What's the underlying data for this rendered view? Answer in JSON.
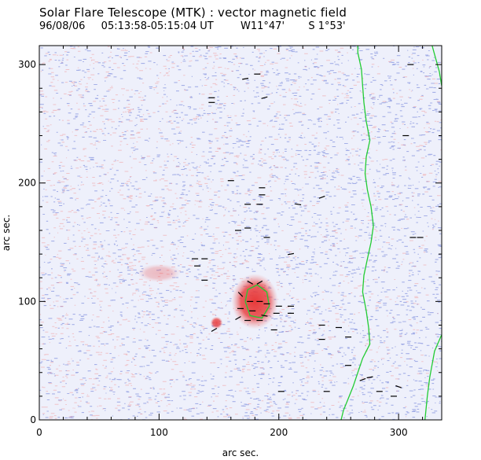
{
  "header": {
    "title": "Solar Flare Telescope (MTK) : vector magnetic field",
    "date": "96/08/06",
    "time_range": "05:13:58-05:15:04 UT",
    "position_w": "W11°47'",
    "position_s": "S 1°53'"
  },
  "chart_data": {
    "type": "scatter",
    "title": "Solar Flare Telescope (MTK) : vector magnetic field",
    "xlabel": "arc sec.",
    "ylabel": "arc sec.",
    "xlim": [
      0,
      336
    ],
    "ylim": [
      0,
      316
    ],
    "xticks": [
      0,
      100,
      200,
      300
    ],
    "yticks": [
      0,
      100,
      200,
      300
    ],
    "background_colors": {
      "negative_polarity": "#8c9ae0",
      "positive_polarity": "#f08a8a",
      "strong_positive": "#e83a3a",
      "neutral_line": "#22cc33",
      "transverse_field": "#000000"
    },
    "strong_regions": [
      {
        "name": "sunspot-main",
        "x": 180,
        "y": 100,
        "rx": 15,
        "ry": 18,
        "intensity": 1.0
      },
      {
        "name": "sunspot-small",
        "x": 148,
        "y": 82,
        "rx": 4,
        "ry": 4,
        "intensity": 0.9
      },
      {
        "name": "plage-weak",
        "x": 100,
        "y": 124,
        "rx": 14,
        "ry": 6,
        "intensity": 0.3
      }
    ],
    "neutral_lines": [
      {
        "name": "neutral-line-left",
        "points": [
          [
            252,
            0
          ],
          [
            254,
            8
          ],
          [
            258,
            18
          ],
          [
            262,
            28
          ],
          [
            266,
            40
          ],
          [
            270,
            52
          ],
          [
            276,
            64
          ],
          [
            275,
            78
          ],
          [
            273,
            92
          ],
          [
            270,
            108
          ],
          [
            271,
            122
          ],
          [
            274,
            136
          ],
          [
            277,
            150
          ],
          [
            279,
            164
          ],
          [
            277,
            180
          ],
          [
            274,
            194
          ],
          [
            272,
            208
          ],
          [
            273,
            222
          ],
          [
            276,
            236
          ],
          [
            273,
            252
          ],
          [
            271,
            268
          ],
          [
            270,
            282
          ],
          [
            269,
            296
          ],
          [
            266,
            310
          ],
          [
            266,
            316
          ]
        ]
      },
      {
        "name": "neutral-line-right",
        "points": [
          [
            322,
            0
          ],
          [
            324,
            20
          ],
          [
            326,
            36
          ],
          [
            330,
            58
          ],
          [
            336,
            72
          ]
        ]
      },
      {
        "name": "neutral-line-right-top",
        "points": [
          [
            328,
            316
          ],
          [
            331,
            305
          ],
          [
            334,
            294
          ],
          [
            336,
            282
          ]
        ]
      },
      {
        "name": "neutral-loop-sunspot",
        "points": [
          [
            172,
            100
          ],
          [
            174,
            110
          ],
          [
            182,
            114
          ],
          [
            190,
            108
          ],
          [
            192,
            96
          ],
          [
            186,
            86
          ],
          [
            176,
            88
          ],
          [
            172,
            100
          ]
        ]
      }
    ],
    "transverse_vectors": [
      {
        "x": 172,
        "y": 288,
        "angle": 10
      },
      {
        "x": 182,
        "y": 292,
        "angle": 0
      },
      {
        "x": 144,
        "y": 272,
        "angle": 0
      },
      {
        "x": 144,
        "y": 268,
        "angle": 0
      },
      {
        "x": 188,
        "y": 272,
        "angle": 15
      },
      {
        "x": 160,
        "y": 202,
        "angle": 0
      },
      {
        "x": 186,
        "y": 196,
        "angle": 0
      },
      {
        "x": 186,
        "y": 190,
        "angle": 0
      },
      {
        "x": 174,
        "y": 182,
        "angle": 0
      },
      {
        "x": 184,
        "y": 182,
        "angle": 0
      },
      {
        "x": 216,
        "y": 182,
        "angle": -10
      },
      {
        "x": 236,
        "y": 188,
        "angle": 20
      },
      {
        "x": 166,
        "y": 160,
        "angle": 0
      },
      {
        "x": 174,
        "y": 162,
        "angle": 0
      },
      {
        "x": 190,
        "y": 154,
        "angle": 0
      },
      {
        "x": 210,
        "y": 140,
        "angle": 10
      },
      {
        "x": 130,
        "y": 136,
        "angle": 0
      },
      {
        "x": 138,
        "y": 136,
        "angle": 0
      },
      {
        "x": 132,
        "y": 130,
        "angle": 0
      },
      {
        "x": 138,
        "y": 118,
        "angle": 0
      },
      {
        "x": 176,
        "y": 116,
        "angle": -30
      },
      {
        "x": 184,
        "y": 116,
        "angle": 30
      },
      {
        "x": 168,
        "y": 106,
        "angle": -45
      },
      {
        "x": 176,
        "y": 100,
        "angle": 0
      },
      {
        "x": 184,
        "y": 100,
        "angle": 0
      },
      {
        "x": 190,
        "y": 98,
        "angle": 0
      },
      {
        "x": 200,
        "y": 96,
        "angle": 0
      },
      {
        "x": 210,
        "y": 96,
        "angle": 0
      },
      {
        "x": 168,
        "y": 94,
        "angle": 0
      },
      {
        "x": 178,
        "y": 92,
        "angle": 0
      },
      {
        "x": 188,
        "y": 88,
        "angle": -10
      },
      {
        "x": 198,
        "y": 90,
        "angle": 0
      },
      {
        "x": 210,
        "y": 90,
        "angle": 0
      },
      {
        "x": 166,
        "y": 86,
        "angle": 30
      },
      {
        "x": 174,
        "y": 84,
        "angle": 0
      },
      {
        "x": 184,
        "y": 84,
        "angle": 0
      },
      {
        "x": 196,
        "y": 76,
        "angle": 0
      },
      {
        "x": 146,
        "y": 76,
        "angle": 30
      },
      {
        "x": 236,
        "y": 80,
        "angle": 0
      },
      {
        "x": 250,
        "y": 78,
        "angle": 0
      },
      {
        "x": 236,
        "y": 68,
        "angle": 0
      },
      {
        "x": 258,
        "y": 70,
        "angle": 0
      },
      {
        "x": 258,
        "y": 46,
        "angle": 0
      },
      {
        "x": 276,
        "y": 36,
        "angle": 10
      },
      {
        "x": 270,
        "y": 34,
        "angle": 20
      },
      {
        "x": 284,
        "y": 24,
        "angle": 0
      },
      {
        "x": 296,
        "y": 20,
        "angle": 0
      },
      {
        "x": 300,
        "y": 28,
        "angle": -20
      },
      {
        "x": 202,
        "y": 24,
        "angle": 0
      },
      {
        "x": 240,
        "y": 24,
        "angle": 0
      },
      {
        "x": 310,
        "y": 300,
        "angle": 0
      },
      {
        "x": 306,
        "y": 240,
        "angle": 0
      },
      {
        "x": 312,
        "y": 154,
        "angle": 0
      },
      {
        "x": 318,
        "y": 154,
        "angle": 0
      }
    ]
  }
}
